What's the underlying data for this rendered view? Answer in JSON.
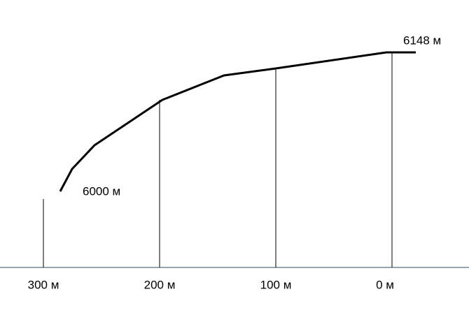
{
  "labels": {
    "summit": "6148 м",
    "base": "6000 м"
  },
  "axis": [
    "300 м",
    "200 м",
    "100 м",
    "0 м"
  ]
}
